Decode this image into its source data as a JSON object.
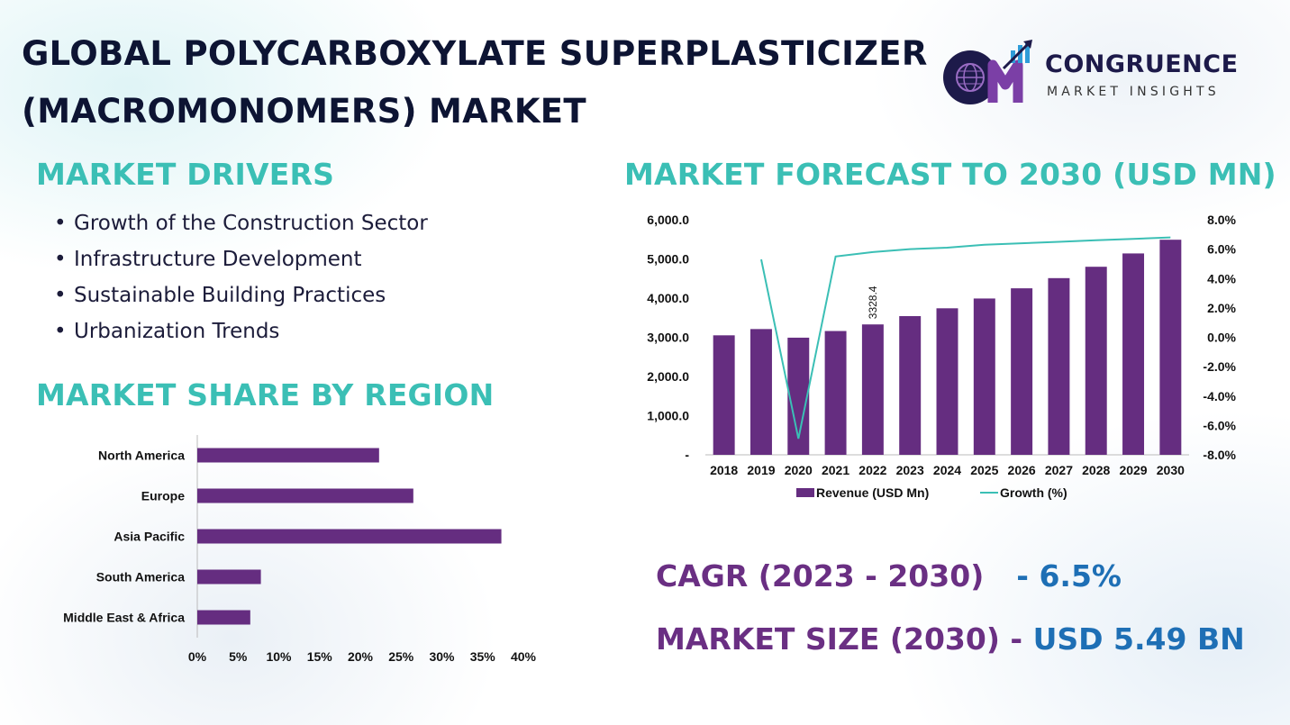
{
  "title": {
    "line1": "GLOBAL POLYCARBOXYLATE SUPERPLASTICIZER",
    "line2": "(MACROMONOMERS) MARKET"
  },
  "logo": {
    "name": "CONGRUENCE",
    "tagline": "MARKET INSIGHTS"
  },
  "drivers": {
    "heading": "MARKET DRIVERS",
    "items": [
      "Growth of the Construction Sector",
      "Infrastructure Development",
      "Sustainable Building Practices",
      "Urbanization Trends"
    ]
  },
  "region": {
    "heading": "MARKET SHARE BY REGION"
  },
  "forecast": {
    "heading": "MARKET FORECAST TO 2030 (USD MN)"
  },
  "cagr": {
    "label": "CAGR (2023 - 2030)",
    "value": "- 6.5%"
  },
  "market_size": {
    "label": "MARKET SIZE (2030) -",
    "value": "USD 5.49 BN"
  },
  "colors": {
    "bar": "#652d80",
    "line": "#3bbfb5",
    "heading": "#3bbfb5"
  },
  "chart_data": [
    {
      "type": "bar",
      "orientation": "horizontal",
      "title": "MARKET SHARE BY REGION",
      "categories": [
        "North America",
        "Europe",
        "Asia Pacific",
        "South America",
        "Middle East & Africa"
      ],
      "values": [
        22.3,
        26.5,
        37.3,
        7.8,
        6.5
      ],
      "xticks": [
        "0%",
        "5%",
        "10%",
        "15%",
        "20%",
        "25%",
        "30%",
        "35%",
        "40%"
      ],
      "xlim": [
        0,
        40
      ]
    },
    {
      "type": "bar",
      "title": "MARKET FORECAST TO 2030 (USD MN)",
      "categories": [
        "2018",
        "2019",
        "2020",
        "2021",
        "2022",
        "2023",
        "2024",
        "2025",
        "2026",
        "2027",
        "2028",
        "2029",
        "2030"
      ],
      "series": [
        {
          "name": "Revenue (USD Mn)",
          "type": "bar",
          "axis": "left",
          "values": [
            3050,
            3210,
            2990,
            3160,
            3328.4,
            3540,
            3740,
            3990,
            4250,
            4510,
            4800,
            5140,
            5490
          ]
        },
        {
          "name": "Growth (%)",
          "type": "line",
          "axis": "right",
          "values": [
            null,
            5.3,
            -6.9,
            5.5,
            5.8,
            6.0,
            6.1,
            6.3,
            6.4,
            6.5,
            6.6,
            6.7,
            6.8
          ]
        }
      ],
      "data_labels": [
        {
          "category": "2022",
          "text": "3328.4"
        }
      ],
      "yticks_left": [
        "-",
        "1,000.0",
        "2,000.0",
        "3,000.0",
        "4,000.0",
        "5,000.0",
        "6,000.0"
      ],
      "ylim_left": [
        0,
        6000
      ],
      "yticks_right": [
        "-8.0%",
        "-6.0%",
        "-4.0%",
        "-2.0%",
        "0.0%",
        "2.0%",
        "4.0%",
        "6.0%",
        "8.0%"
      ],
      "ylim_right": [
        -8,
        8
      ],
      "legend": "bottom"
    }
  ]
}
